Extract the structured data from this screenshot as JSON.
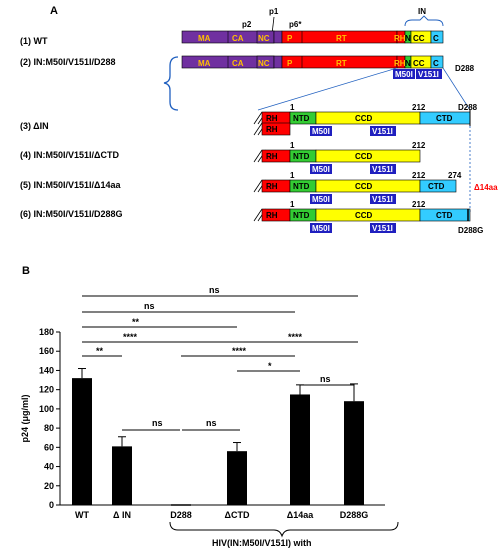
{
  "panel_a": {
    "label": "A",
    "constructs": [
      {
        "label": "(1) WT"
      },
      {
        "label": "(2) IN:M50I/V151I/D288"
      },
      {
        "label": "(3) ΔIN"
      },
      {
        "label": "(4) IN:M50I/V151I/ΔCTD"
      },
      {
        "label": "(5) IN:M50I/V151I/Δ14aa"
      },
      {
        "label": "(6) IN:M50I/V151I/D288G"
      }
    ],
    "gag_pol": {
      "segments": [
        "MA",
        "CA",
        "NC",
        "P",
        "RT",
        "RH",
        "N",
        "CC",
        "C"
      ],
      "top_labels": {
        "p2": "p2",
        "p1": "p1",
        "p6": "p6*",
        "in": "IN"
      }
    },
    "domains": {
      "rh": "RH",
      "ntd": "NTD",
      "ccd": "CCD",
      "ctd": "CTD"
    },
    "mutations": {
      "m50i": "M50I",
      "v151i": "V151I"
    },
    "positions": {
      "start": "1",
      "ccd_end": "212",
      "d288": "D288",
      "p274": "274",
      "d288g": "D288G"
    },
    "deletion_label": "Δ14aa",
    "colors": {
      "ma_ca": "#7030a0",
      "nc": "#7030a0",
      "p": "#ff0000",
      "rt": "#ff0000",
      "rh": "#ff0000",
      "ntd": "#33cc33",
      "ccd": "#ffff00",
      "ctd": "#33ccff",
      "mut_box": "#1f1fbf",
      "seg_text": "#ffc000",
      "deletion": "#ff0000"
    }
  },
  "panel_b": {
    "label": "B",
    "bottom_label": "HIV(IN:M50I/V151I) with",
    "significance": {
      "ns": "ns",
      "two": "**",
      "four": "****",
      "one": "*"
    }
  },
  "chart_data": {
    "type": "bar",
    "categories": [
      "WT",
      "Δ IN",
      "D288",
      "ΔCTD",
      "Δ14aa",
      "D288G"
    ],
    "values": [
      132,
      61,
      0,
      56,
      115,
      108
    ],
    "errors": [
      10,
      10,
      0,
      9,
      10,
      18
    ],
    "ylabel": "p24 (μg/ml)",
    "ylim": [
      0,
      180
    ],
    "yticks": [
      0,
      20,
      40,
      60,
      80,
      100,
      120,
      140,
      160,
      180
    ],
    "bar_color": "#000000"
  }
}
